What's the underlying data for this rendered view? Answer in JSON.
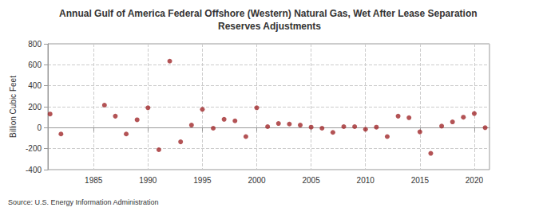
{
  "chart_data": {
    "type": "scatter",
    "title": "Annual Gulf of America Federal Offshore (Western) Natural Gas, Wet After Lease Separation Reserves Adjustments",
    "y_label": "Billion Cubic Feet",
    "annotation": "Source: U.S. Energy Information Administration",
    "x": [
      1981,
      1982,
      1986,
      1987,
      1988,
      1989,
      1990,
      1991,
      1992,
      1993,
      1994,
      1995,
      1996,
      1997,
      1998,
      1999,
      2000,
      2001,
      2002,
      2003,
      2004,
      2005,
      2006,
      2007,
      2008,
      2009,
      2010,
      2011,
      2012,
      2013,
      2014,
      2015,
      2016,
      2017,
      2018,
      2019,
      2020,
      2021
    ],
    "values": [
      130,
      -60,
      215,
      110,
      -60,
      75,
      190,
      -210,
      635,
      -135,
      25,
      175,
      -5,
      80,
      65,
      -85,
      190,
      10,
      40,
      35,
      25,
      5,
      -5,
      -45,
      10,
      10,
      -15,
      5,
      -85,
      110,
      95,
      -40,
      -245,
      15,
      55,
      100,
      135,
      0
    ],
    "color": "#a0282a",
    "marker": "circle",
    "xlim": [
      1980.8,
      2021.4
    ],
    "xticks": [
      1985,
      1990,
      1995,
      2000,
      2005,
      2010,
      2015,
      2020
    ],
    "ylim": [
      -400,
      800
    ],
    "yticks": [
      -400,
      -200,
      0,
      200,
      400,
      600,
      800
    ],
    "grid": true
  }
}
